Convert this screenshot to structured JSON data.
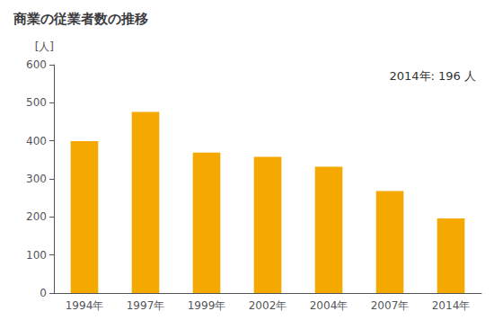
{
  "chart_data": {
    "type": "bar",
    "title": "商業の従業者数の推移",
    "ylabel": "[人]",
    "annotation": "2014年: 196 人",
    "categories": [
      "1994年",
      "1997年",
      "1999年",
      "2002年",
      "2004年",
      "2007年",
      "2014年"
    ],
    "values": [
      399,
      476,
      369,
      358,
      332,
      268,
      196
    ],
    "color": "#F5A800",
    "ylim": [
      0,
      600
    ],
    "yticks": [
      0,
      100,
      200,
      300,
      400,
      500,
      600
    ],
    "grid": false
  }
}
